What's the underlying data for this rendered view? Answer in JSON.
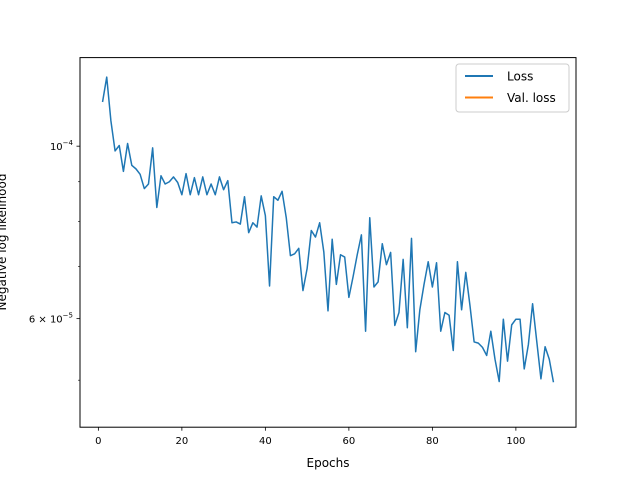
{
  "chart_data": {
    "type": "line",
    "xlabel": "Epochs",
    "ylabel": "Negative log likelihood",
    "yscale": "log",
    "xlim": [
      -4.4,
      114.4
    ],
    "ylim": [
      4.35e-05,
      0.00013
    ],
    "grid": false,
    "legend_placement": "top-right",
    "x_ticks": [
      {
        "value": 0,
        "label": "0"
      },
      {
        "value": 20,
        "label": "20"
      },
      {
        "value": 40,
        "label": "40"
      },
      {
        "value": 60,
        "label": "60"
      },
      {
        "value": 80,
        "label": "80"
      },
      {
        "value": 100,
        "label": "100"
      }
    ],
    "y_ticks": [
      {
        "value": 0.0001,
        "base": "10",
        "exp": "−4"
      },
      {
        "value": 6e-05,
        "mant": "6 × ",
        "base": "10",
        "exp": "−5"
      }
    ],
    "series": [
      {
        "name": "Loss",
        "color": "#1f77b4",
        "x": [
          1,
          2,
          3,
          4,
          5,
          6,
          7,
          8,
          9,
          10,
          11,
          12,
          13,
          14,
          15,
          16,
          17,
          18,
          19,
          20,
          21,
          22,
          23,
          24,
          25,
          26,
          27,
          28,
          29,
          30,
          31,
          32,
          33,
          34,
          35,
          36,
          37,
          38,
          39,
          40,
          41,
          42,
          43,
          44,
          45,
          46,
          47,
          48,
          49,
          50,
          51,
          52,
          53,
          54,
          55,
          56,
          57,
          58,
          59,
          60,
          61,
          62,
          63,
          64,
          65,
          66,
          67,
          68,
          69,
          70,
          71,
          72,
          73,
          74,
          75,
          76,
          77,
          78,
          79,
          80,
          81,
          82,
          83,
          84,
          85,
          86,
          87,
          88,
          89,
          90,
          91,
          92,
          93,
          94,
          95,
          96,
          97,
          98,
          99,
          100,
          101,
          102,
          103,
          104,
          105,
          106,
          107,
          108,
          109
        ],
        "y": [
          0.000114,
          0.0001227,
          0.0001078,
          9.86e-05,
          0.0001002,
          9.28e-05,
          0.0001008,
          9.45e-05,
          9.35e-05,
          9.2e-05,
          8.82e-05,
          8.94e-05,
          9.95e-05,
          8.34e-05,
          9.16e-05,
          8.94e-05,
          9e-05,
          9.13e-05,
          8.98e-05,
          8.66e-05,
          9.22e-05,
          8.66e-05,
          9.11e-05,
          8.66e-05,
          9.13e-05,
          8.66e-05,
          8.94e-05,
          8.66e-05,
          9.13e-05,
          8.79e-05,
          9.03e-05,
          7.97e-05,
          7.99e-05,
          7.94e-05,
          8.61e-05,
          7.74e-05,
          7.97e-05,
          7.87e-05,
          8.63e-05,
          8.14e-05,
          6.61e-05,
          8.61e-05,
          8.52e-05,
          8.75e-05,
          8.09e-05,
          7.23e-05,
          7.27e-05,
          7.39e-05,
          6.52e-05,
          6.96e-05,
          7.79e-05,
          7.64e-05,
          7.97e-05,
          7.31e-05,
          6.14e-05,
          7.59e-05,
          6.64e-05,
          7.25e-05,
          7.2e-05,
          6.39e-05,
          6.79e-05,
          7.25e-05,
          7.69e-05,
          5.78e-05,
          8.09e-05,
          6.59e-05,
          6.69e-05,
          7.49e-05,
          7.04e-05,
          7.3e-05,
          5.88e-05,
          6.11e-05,
          7.15e-05,
          5.84e-05,
          7.61e-05,
          5.44e-05,
          6.16e-05,
          6.64e-05,
          7.1e-05,
          6.59e-05,
          7.08e-05,
          5.78e-05,
          6.11e-05,
          6.06e-05,
          5.46e-05,
          7.1e-05,
          6.16e-05,
          6.88e-05,
          6.24e-05,
          5.6e-05,
          5.58e-05,
          5.51e-05,
          5.38e-05,
          5.78e-05,
          5.32e-05,
          4.98e-05,
          5.99e-05,
          5.29e-05,
          5.89e-05,
          5.99e-05,
          5.99e-05,
          5.17e-05,
          5.56e-05,
          6.27e-05,
          5.61e-05,
          5.02e-05,
          5.52e-05,
          5.32e-05,
          4.97e-05
        ]
      },
      {
        "name": "Val. loss",
        "color": "#ff7f0e",
        "x": [],
        "y": []
      }
    ]
  }
}
